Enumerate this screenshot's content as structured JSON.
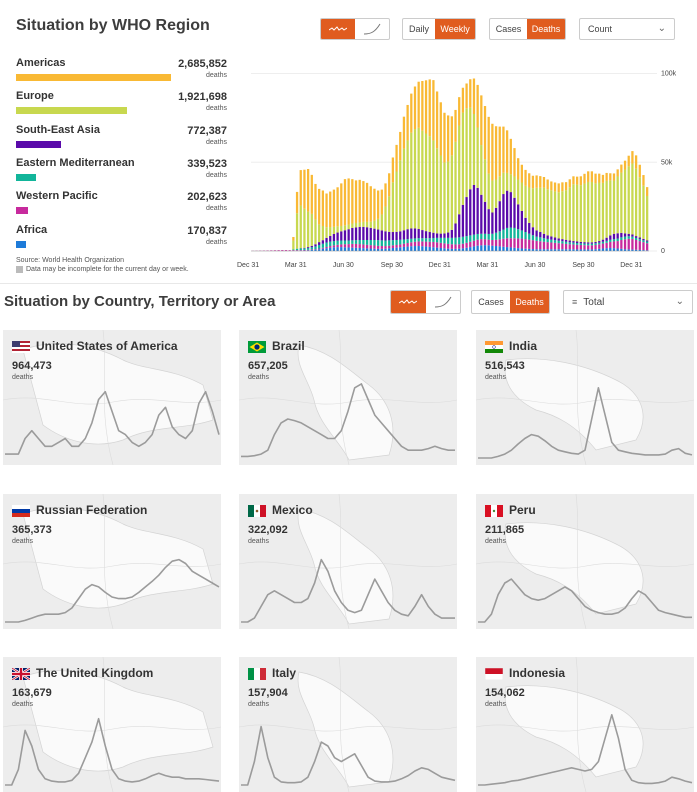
{
  "region_section": {
    "title": "Situation by WHO Region",
    "toggle_daily": "Daily",
    "toggle_weekly": "Weekly",
    "toggle_cases": "Cases",
    "toggle_deaths": "Deaths",
    "select_value": "Count",
    "source": "Source: World Health Organization",
    "note": "Data may be incomplete for the current day or week.",
    "unit": "deaths",
    "regions": [
      {
        "name": "Americas",
        "value": "2,685,852",
        "share": 1.0,
        "color": "#f9b934"
      },
      {
        "name": "Europe",
        "value": "1,921,698",
        "share": 0.715,
        "color": "#c8d84f"
      },
      {
        "name": "South-East Asia",
        "value": "772,387",
        "share": 0.288,
        "color": "#5a0aaa"
      },
      {
        "name": "Eastern Mediterranean",
        "value": "339,523",
        "share": 0.126,
        "color": "#12b59a"
      },
      {
        "name": "Western Pacific",
        "value": "202,623",
        "share": 0.075,
        "color": "#c72a9d"
      },
      {
        "name": "Africa",
        "value": "170,837",
        "share": 0.064,
        "color": "#1e7bd9"
      }
    ]
  },
  "chart_data": {
    "type": "bar",
    "stacked": true,
    "x_tick_labels": [
      "Dec 31",
      "Mar 31",
      "Jun 30",
      "Sep 30",
      "Dec 31",
      "Mar 31",
      "Jun 30",
      "Sep 30",
      "Dec 31"
    ],
    "y_tick_labels": [
      "0",
      "50k",
      "100k"
    ],
    "ylim": [
      0,
      102000
    ],
    "legend_position": "left",
    "series": [
      {
        "name": "Americas",
        "color": "#f9b934",
        "values": [
          0,
          0,
          0,
          0,
          0,
          0,
          0,
          0,
          0,
          0,
          0,
          2000,
          12000,
          20000,
          22000,
          24000,
          22000,
          20000,
          20000,
          20000,
          19000,
          20000,
          21000,
          22000,
          24000,
          26000,
          26000,
          25000,
          24000,
          24000,
          23000,
          22000,
          20000,
          18000,
          16000,
          14000,
          13000,
          13000,
          14000,
          15000,
          16000,
          18000,
          20000,
          22000,
          24000,
          26000,
          28000,
          30000,
          32000,
          34000,
          32000,
          30000,
          28000,
          26000,
          22000,
          18000,
          16000,
          14000,
          14000,
          16000,
          20000,
          24000,
          28000,
          30000,
          32000,
          32000,
          30000,
          28000,
          26000,
          24000,
          20000,
          16000,
          12000,
          10000,
          9000,
          8000,
          7000,
          7000,
          6500,
          6000,
          5500,
          5000,
          5000,
          5000,
          5000,
          4500,
          4500,
          4500,
          4500,
          5000,
          5500,
          6000,
          6000,
          5500,
          5000,
          4500,
          4500,
          4000,
          4000,
          4000,
          4500,
          5000,
          6000,
          7000,
          7500,
          7000,
          6000,
          5000
        ]
      },
      {
        "name": "Europe",
        "color": "#c8d84f",
        "values": [
          0,
          0,
          0,
          0,
          0,
          0,
          0,
          0,
          0,
          0,
          0,
          5000,
          20000,
          24000,
          22000,
          20000,
          18000,
          14000,
          10000,
          8000,
          6000,
          5000,
          4000,
          3500,
          3000,
          2800,
          2600,
          2500,
          2500,
          2500,
          2800,
          3000,
          3500,
          4500,
          6000,
          9000,
          14000,
          20000,
          28000,
          34000,
          40000,
          46000,
          50000,
          54000,
          56000,
          57000,
          56000,
          55000,
          54000,
          52000,
          48000,
          44000,
          40000,
          40000,
          42000,
          46000,
          50000,
          52000,
          50000,
          46000,
          40000,
          34000,
          28000,
          24000,
          20000,
          18000,
          16000,
          14000,
          12000,
          10000,
          10000,
          12000,
          14000,
          16000,
          18000,
          20000,
          22000,
          24000,
          25000,
          26000,
          26000,
          26000,
          26000,
          26000,
          27000,
          28000,
          30000,
          32000,
          32000,
          32000,
          33000,
          34000,
          34000,
          33000,
          33000,
          32000,
          32000,
          31000,
          30000,
          32000,
          34000,
          36000,
          38000,
          40000,
          38000,
          34000,
          30000,
          25000
        ]
      },
      {
        "name": "South-East Asia",
        "color": "#5a0aaa",
        "values": [
          0,
          0,
          0,
          0,
          0,
          0,
          0,
          0,
          0,
          0,
          0,
          0,
          0,
          200,
          300,
          500,
          800,
          1200,
          1600,
          2000,
          2600,
          3200,
          4000,
          4600,
          5200,
          5800,
          6400,
          7000,
          7200,
          7400,
          7400,
          7200,
          6800,
          6400,
          6000,
          5600,
          5200,
          4800,
          4600,
          4600,
          4800,
          5200,
          5600,
          5800,
          5600,
          5200,
          4600,
          4000,
          3500,
          3000,
          2500,
          2400,
          2500,
          3000,
          4500,
          8000,
          13000,
          18000,
          22000,
          26000,
          28000,
          26000,
          22000,
          18000,
          14000,
          12000,
          14000,
          17000,
          20000,
          21000,
          20000,
          17000,
          14000,
          11000,
          8000,
          6000,
          4500,
          3500,
          3000,
          2500,
          2000,
          1800,
          1500,
          1300,
          1200,
          1100,
          1000,
          900,
          900,
          800,
          800,
          800,
          800,
          800,
          900,
          1200,
          1800,
          2500,
          3000,
          3000,
          2500,
          1800,
          1400,
          1200,
          1000,
          900,
          800,
          700
        ]
      },
      {
        "name": "Eastern Mediterranean",
        "color": "#12b59a",
        "values": [
          0,
          0,
          0,
          0,
          0,
          0,
          0,
          0,
          0,
          0,
          0,
          400,
          800,
          900,
          900,
          1000,
          1200,
          1500,
          2000,
          2300,
          2500,
          2500,
          2400,
          2300,
          2200,
          2100,
          2000,
          2000,
          2100,
          2300,
          2500,
          2700,
          2900,
          3100,
          3200,
          3200,
          3100,
          3000,
          2900,
          2800,
          2600,
          2400,
          2200,
          2000,
          1900,
          1800,
          1800,
          1900,
          2000,
          2200,
          2500,
          2800,
          3100,
          3400,
          3600,
          3800,
          3900,
          3900,
          3800,
          3600,
          3400,
          3200,
          3000,
          3000,
          3200,
          3500,
          4000,
          4500,
          5200,
          5800,
          6000,
          5800,
          5200,
          4600,
          4000,
          3400,
          2800,
          2400,
          2200,
          2000,
          1800,
          1600,
          1500,
          1400,
          1300,
          1200,
          1100,
          1000,
          1000,
          900,
          900,
          900,
          900,
          900,
          900,
          1000,
          1100,
          1200,
          1300,
          1400,
          1500,
          1500,
          1400,
          1300,
          1200,
          1100,
          1000,
          900
        ]
      },
      {
        "name": "Western Pacific",
        "color": "#c72a9d",
        "values": [
          100,
          150,
          200,
          250,
          300,
          350,
          400,
          450,
          500,
          500,
          450,
          400,
          350,
          300,
          300,
          300,
          300,
          300,
          400,
          500,
          700,
          900,
          1100,
          1300,
          1500,
          1700,
          1900,
          2100,
          2200,
          2200,
          2100,
          2000,
          1900,
          1800,
          1700,
          1600,
          1500,
          1500,
          1500,
          1500,
          1600,
          1800,
          2000,
          2200,
          2400,
          2600,
          2700,
          2800,
          2900,
          3000,
          3000,
          2900,
          2800,
          2700,
          2600,
          2500,
          2500,
          2600,
          2800,
          3000,
          3200,
          3400,
          3500,
          3400,
          3200,
          3200,
          3500,
          4000,
          4500,
          5000,
          5200,
          5400,
          5500,
          5600,
          5400,
          5200,
          5000,
          4700,
          4500,
          4200,
          4000,
          3800,
          3600,
          3400,
          3200,
          3000,
          2800,
          2700,
          2600,
          2500,
          2400,
          2300,
          2300,
          2400,
          2600,
          2800,
          3000,
          3400,
          3800,
          4200,
          5000,
          5600,
          6000,
          6000,
          5500,
          5000,
          4500,
          4000
        ]
      },
      {
        "name": "Africa",
        "color": "#1e7bd9",
        "values": [
          0,
          0,
          0,
          0,
          0,
          0,
          0,
          0,
          0,
          0,
          0,
          100,
          150,
          200,
          300,
          400,
          600,
          800,
          1000,
          1300,
          1600,
          1900,
          2100,
          2200,
          2200,
          2100,
          2000,
          1900,
          1800,
          1700,
          1600,
          1500,
          1400,
          1300,
          1200,
          1200,
          1300,
          1500,
          1700,
          1900,
          2100,
          2300,
          2500,
          2700,
          2800,
          2800,
          2700,
          2500,
          2300,
          2100,
          1900,
          1700,
          1500,
          1300,
          1200,
          1200,
          1300,
          1500,
          1800,
          2200,
          2600,
          3000,
          3200,
          3300,
          3200,
          3000,
          2800,
          2600,
          2400,
          2200,
          2000,
          1800,
          1600,
          1400,
          1300,
          1200,
          1100,
          1000,
          1000,
          1000,
          1000,
          1000,
          1000,
          1000,
          1000,
          1000,
          1000,
          1000,
          900,
          900,
          900,
          900,
          900,
          1000,
          1200,
          1400,
          1600,
          1700,
          1600,
          1400,
          1200,
          1000,
          900,
          800,
          700,
          600,
          500,
          400
        ]
      }
    ]
  },
  "country_section": {
    "title": "Situation by Country, Territory or Area",
    "toggle_cases": "Cases",
    "toggle_deaths": "Deaths",
    "select_value": "Total",
    "unit": "deaths",
    "countries": [
      {
        "name": "United States of America",
        "value": "964,473",
        "flag": "us-flag",
        "trend": [
          0.05,
          0.05,
          0.05,
          0.25,
          0.35,
          0.25,
          0.15,
          0.15,
          0.2,
          0.25,
          0.15,
          0.15,
          0.25,
          0.45,
          0.75,
          0.85,
          0.6,
          0.35,
          0.3,
          0.2,
          0.15,
          0.2,
          0.3,
          0.55,
          0.65,
          0.4,
          0.3,
          0.25,
          0.35,
          0.7,
          0.85,
          0.6,
          0.3
        ]
      },
      {
        "name": "Brazil",
        "value": "657,205",
        "flag": "br-flag",
        "trend": [
          0.02,
          0.02,
          0.03,
          0.05,
          0.1,
          0.3,
          0.45,
          0.5,
          0.48,
          0.45,
          0.4,
          0.35,
          0.3,
          0.25,
          0.25,
          0.35,
          0.6,
          0.9,
          0.95,
          0.75,
          0.55,
          0.45,
          0.35,
          0.25,
          0.15,
          0.1,
          0.1,
          0.1,
          0.12,
          0.15,
          0.12,
          0.1,
          0.1
        ]
      },
      {
        "name": "India",
        "value": "516,543",
        "flag": "in-flag",
        "trend": [
          0.0,
          0.0,
          0.0,
          0.02,
          0.05,
          0.1,
          0.18,
          0.25,
          0.3,
          0.28,
          0.22,
          0.15,
          0.1,
          0.08,
          0.06,
          0.05,
          0.1,
          0.5,
          0.9,
          0.55,
          0.2,
          0.1,
          0.08,
          0.06,
          0.05,
          0.04,
          0.04,
          0.04,
          0.05,
          0.1,
          0.12,
          0.06,
          0.04
        ]
      },
      {
        "name": "Russian Federation",
        "value": "365,373",
        "flag": "ru-flag",
        "trend": [
          0.0,
          0.0,
          0.0,
          0.02,
          0.05,
          0.08,
          0.1,
          0.1,
          0.1,
          0.12,
          0.18,
          0.3,
          0.42,
          0.48,
          0.45,
          0.38,
          0.32,
          0.3,
          0.3,
          0.32,
          0.38,
          0.45,
          0.52,
          0.6,
          0.7,
          0.78,
          0.8,
          0.75,
          0.65,
          0.6,
          0.55,
          0.5,
          0.45
        ]
      },
      {
        "name": "Mexico",
        "value": "322,092",
        "flag": "mx-flag",
        "trend": [
          0.0,
          0.0,
          0.05,
          0.2,
          0.35,
          0.4,
          0.35,
          0.3,
          0.25,
          0.25,
          0.3,
          0.5,
          0.8,
          0.65,
          0.4,
          0.25,
          0.15,
          0.12,
          0.15,
          0.35,
          0.55,
          0.4,
          0.25,
          0.15,
          0.1,
          0.08,
          0.2,
          0.35,
          0.2,
          0.1,
          0.05,
          0.05,
          0.05
        ]
      },
      {
        "name": "Peru",
        "value": "211,865",
        "flag": "pe-flag",
        "trend": [
          0.0,
          0.0,
          0.1,
          0.35,
          0.5,
          0.55,
          0.45,
          0.35,
          0.3,
          0.28,
          0.3,
          0.35,
          0.4,
          0.45,
          0.4,
          0.3,
          0.2,
          0.15,
          0.12,
          0.1,
          0.1,
          0.12,
          0.18,
          0.3,
          0.4,
          0.35,
          0.25,
          0.15,
          0.12,
          0.1,
          0.08,
          0.06,
          0.06
        ]
      },
      {
        "name": "The United Kingdom",
        "value": "163,679",
        "flag": "uk-flag",
        "trend": [
          0.0,
          0.0,
          0.2,
          0.7,
          0.5,
          0.2,
          0.08,
          0.05,
          0.04,
          0.04,
          0.06,
          0.15,
          0.35,
          0.55,
          0.85,
          0.5,
          0.2,
          0.08,
          0.05,
          0.04,
          0.05,
          0.08,
          0.12,
          0.15,
          0.12,
          0.1,
          0.1,
          0.08,
          0.08,
          0.08,
          0.07,
          0.06,
          0.05
        ]
      },
      {
        "name": "Italy",
        "value": "157,904",
        "flag": "it-flag",
        "trend": [
          0.0,
          0.0,
          0.3,
          0.75,
          0.35,
          0.1,
          0.04,
          0.03,
          0.03,
          0.04,
          0.1,
          0.3,
          0.55,
          0.5,
          0.35,
          0.3,
          0.35,
          0.4,
          0.25,
          0.1,
          0.05,
          0.04,
          0.04,
          0.05,
          0.08,
          0.12,
          0.18,
          0.22,
          0.2,
          0.15,
          0.1,
          0.08,
          0.06
        ]
      },
      {
        "name": "Indonesia",
        "value": "154,062",
        "flag": "id-flag",
        "trend": [
          0.0,
          0.0,
          0.01,
          0.02,
          0.03,
          0.05,
          0.06,
          0.08,
          0.1,
          0.12,
          0.14,
          0.16,
          0.18,
          0.2,
          0.22,
          0.2,
          0.18,
          0.2,
          0.3,
          0.6,
          0.9,
          0.6,
          0.2,
          0.06,
          0.03,
          0.02,
          0.02,
          0.03,
          0.05,
          0.1,
          0.08,
          0.05,
          0.03
        ]
      }
    ]
  }
}
